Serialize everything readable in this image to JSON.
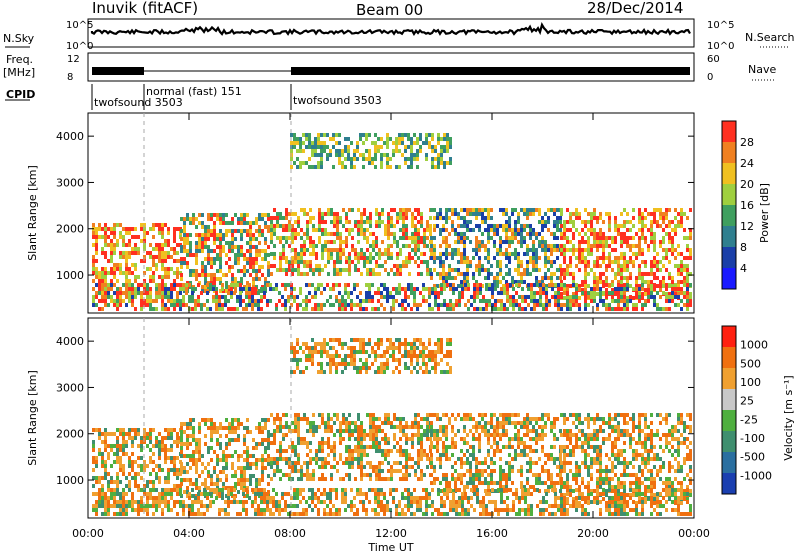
{
  "header": {
    "radar_title": "Inuvik (fitACF)",
    "beam": "Beam 00",
    "date": "28/Dec/2014"
  },
  "panels": {
    "nsky_label": "N.Sky",
    "nsky_ticks": [
      "10^5",
      "10^0"
    ],
    "nsearch_label": "N.Search",
    "nsearch_ticks": [
      "10^5",
      "10^0"
    ],
    "freq_label": "Freq.",
    "freq_unit": "[MHz]",
    "freq_ticks": [
      "12",
      "8"
    ],
    "nave_label": "Nave",
    "nave_ticks": [
      "60",
      "0"
    ],
    "cpid_label": "CPID"
  },
  "cpid_segments": [
    {
      "start_hour": 0.0,
      "end_hour": 2.0,
      "name": "twofsound 3503"
    },
    {
      "start_hour": 2.0,
      "end_hour": 8.0,
      "name": "normal (fast) 151"
    },
    {
      "start_hour": 8.0,
      "end_hour": 24.0,
      "name": "twofsound 3503"
    }
  ],
  "chart_data": [
    {
      "type": "heatmap",
      "panel": "power",
      "ylabel": "Slant Range [km]",
      "xlabel": "Time UT",
      "xticks": [
        "00:00",
        "04:00",
        "08:00",
        "12:00",
        "16:00",
        "20:00",
        "00:00"
      ],
      "xlim_hours": [
        0,
        24
      ],
      "ylim": [
        180,
        4500
      ],
      "yticks": [
        1000,
        2000,
        3000,
        4000
      ],
      "colorbar_label": "Power [dB]",
      "colorbar_ticks": [
        "4",
        "8",
        "12",
        "16",
        "20",
        "24",
        "28"
      ],
      "colorbar_range": [
        0,
        30
      ],
      "colors": [
        "#1a1aff",
        "#1a3fa8",
        "#2f7f8f",
        "#3f9f5f",
        "#9fcf3f",
        "#f0c020",
        "#f08020",
        "#ff3020"
      ]
    },
    {
      "type": "heatmap",
      "panel": "velocity",
      "ylabel": "Slant Range [km]",
      "xlabel": "Time UT",
      "xticks": [
        "00:00",
        "04:00",
        "08:00",
        "12:00",
        "16:00",
        "20:00",
        "00:00"
      ],
      "xlim_hours": [
        0,
        24
      ],
      "ylim": [
        180,
        4500
      ],
      "yticks": [
        1000,
        2000,
        3000,
        4000
      ],
      "colorbar_label": "Velocity [m s⁻¹]",
      "colorbar_ticks": [
        "1000",
        "500",
        "100",
        "25",
        "-25",
        "-100",
        "-500",
        "-1000"
      ],
      "colors": [
        "#1a3fb0",
        "#2a6fa0",
        "#3f8f6f",
        "#4faf3f",
        "#c8c8c8",
        "#f0a030",
        "#f07010",
        "#ff2010"
      ]
    }
  ]
}
